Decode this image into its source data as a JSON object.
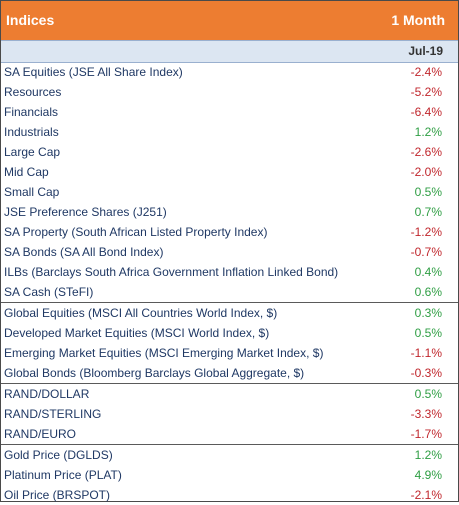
{
  "header": {
    "title": "Indices",
    "period": "1 Month"
  },
  "subheader": {
    "date": "Jul-19"
  },
  "colors": {
    "header_bg": "#ed7d31",
    "subheader_bg": "#dce6f2",
    "negative": "#c0272d",
    "positive": "#2f9e44",
    "text": "#1f3864"
  },
  "groups": [
    {
      "rows": [
        {
          "name": "SA Equities (JSE All Share Index)",
          "value": "-2.4%"
        },
        {
          "name": "Resources",
          "value": "-5.2%"
        },
        {
          "name": "Financials",
          "value": "-6.4%"
        },
        {
          "name": "Industrials",
          "value": "1.2%"
        },
        {
          "name": "Large Cap",
          "value": "-2.6%"
        },
        {
          "name": "Mid Cap",
          "value": "-2.0%"
        },
        {
          "name": "Small Cap",
          "value": "0.5%"
        },
        {
          "name": "JSE Preference Shares (J251)",
          "value": "0.7%"
        },
        {
          "name": "SA Property (South African Listed Property Index)",
          "value": "-1.2%"
        },
        {
          "name": "SA Bonds (SA All Bond Index)",
          "value": "-0.7%"
        },
        {
          "name": "ILBs (Barclays South Africa Government Inflation Linked Bond)",
          "value": "0.4%"
        },
        {
          "name": "SA Cash (STeFI)",
          "value": "0.6%"
        }
      ]
    },
    {
      "rows": [
        {
          "name": "Global Equities (MSCI All Countries World Index, $)",
          "value": "0.3%"
        },
        {
          "name": "Developed Market Equities (MSCI World Index, $)",
          "value": "0.5%"
        },
        {
          "name": "Emerging Market Equities (MSCI Emerging Market Index, $)",
          "value": "-1.1%"
        },
        {
          "name": "Global Bonds (Bloomberg Barclays Global Aggregate, $)",
          "value": "-0.3%"
        }
      ]
    },
    {
      "rows": [
        {
          "name": "RAND/DOLLAR",
          "value": "0.5%"
        },
        {
          "name": "RAND/STERLING",
          "value": "-3.3%"
        },
        {
          "name": "RAND/EURO",
          "value": "-1.7%"
        }
      ]
    },
    {
      "rows": [
        {
          "name": "Gold Price (DGLDS)",
          "value": "1.2%"
        },
        {
          "name": "Platinum Price (PLAT)",
          "value": "4.9%"
        },
        {
          "name": "Oil Price (BRSPOT)",
          "value": "-2.1%"
        }
      ]
    }
  ]
}
